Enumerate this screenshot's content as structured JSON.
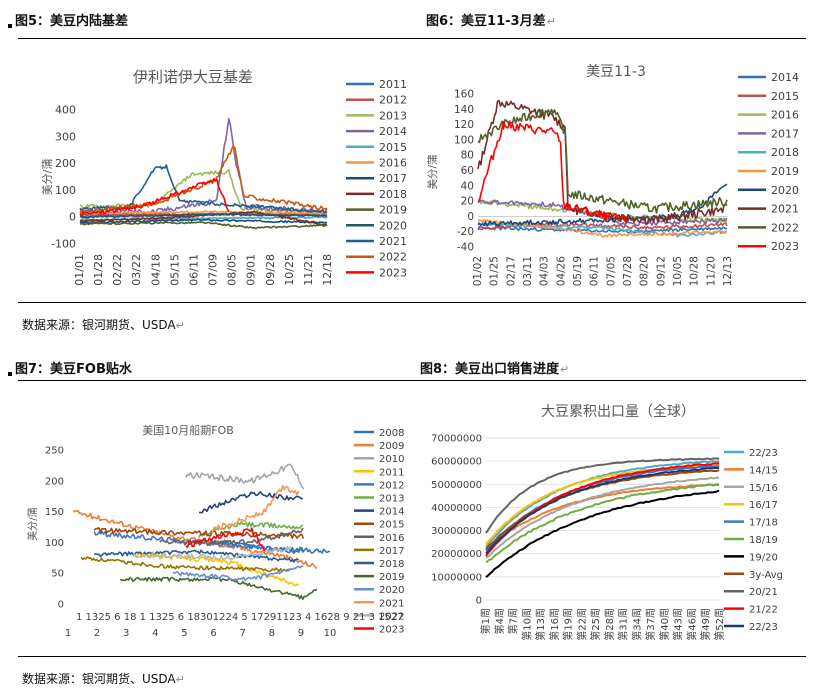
{
  "captions": [
    {
      "label": "图5：美豆内陆基差",
      "mark": ""
    },
    {
      "label": "图6：美豆11-3月差",
      "mark": "↵"
    },
    {
      "label": "图7：美豆FOB贴水",
      "mark": ""
    },
    {
      "label": "图8：美豆出口销售进度",
      "mark": "↵"
    }
  ],
  "sources": [
    {
      "text": "数据来源：银河期货、USDA",
      "mark": "↵"
    },
    {
      "text": "数据来源：银河期货、USDA",
      "mark": "↵"
    }
  ],
  "charts": [
    {
      "type": "line",
      "title": "伊利诺伊大豆基差",
      "ylabel": "美分/蒲",
      "ylim": [
        -100,
        400
      ],
      "yticks": [
        -100,
        0,
        100,
        200,
        300,
        400
      ],
      "xticks": [
        "01/01",
        "01/28",
        "02/22",
        "03/22",
        "04/18",
        "05/15",
        "06/11",
        "07/09",
        "08/05",
        "09/01",
        "09/28",
        "10/25",
        "11/21",
        "12/18"
      ],
      "legend": [
        "2011",
        "2012",
        "2013",
        "2014",
        "2015",
        "2016",
        "2017",
        "2018",
        "2019",
        "2020",
        "2021",
        "2022",
        "2023"
      ],
      "colors": [
        "#2e75b6",
        "#c0504d",
        "#9bbb59",
        "#8064a2",
        "#4bacc6",
        "#f79646",
        "#1f497d",
        "#772c2a",
        "#4f6228",
        "#215968",
        "#1f5f8b",
        "#c55a11",
        "#ff0000"
      ]
    },
    {
      "type": "line",
      "title": "美豆11-3",
      "ylabel": "美分/蒲",
      "ylim": [
        -40,
        160
      ],
      "yticks": [
        -40,
        -20,
        0,
        20,
        40,
        60,
        80,
        100,
        120,
        140,
        160
      ],
      "xticks": [
        "01/02",
        "01/25",
        "02/17",
        "03/11",
        "04/03",
        "04/26",
        "05/19",
        "06/11",
        "07/05",
        "07/28",
        "08/20",
        "09/12",
        "10/05",
        "10/28",
        "11/20",
        "12/13"
      ],
      "legend": [
        "2014",
        "2015",
        "2016",
        "2017",
        "2018",
        "2019",
        "2020",
        "2021",
        "2022",
        "2023"
      ],
      "colors": [
        "#2e75b6",
        "#c0504d",
        "#9bbb59",
        "#8064a2",
        "#4bacc6",
        "#f79646",
        "#1f497d",
        "#772c2a",
        "#4f6228",
        "#ff0000"
      ]
    },
    {
      "type": "line",
      "title": "美国10月船期FOB",
      "ylabel": "美分/蒲",
      "ylim": [
        0,
        250
      ],
      "yticks": [
        0,
        50,
        100,
        150,
        200,
        250
      ],
      "xticks_top": "1 1325 6 18 1 1325 6 18301224 5 17291123 4 1628 9 21 3 1527",
      "xticks": [
        "1",
        "2",
        "3",
        "4",
        "5",
        "6",
        "7",
        "8",
        "9",
        "10"
      ],
      "legend": [
        "2008",
        "2009",
        "2010",
        "2011",
        "2012",
        "2013",
        "2014",
        "2015",
        "2016",
        "2017",
        "2018",
        "2019",
        "2020",
        "2021",
        "2022",
        "2023"
      ],
      "colors": [
        "#2e75b6",
        "#ed7d31",
        "#a5a5a5",
        "#ffc000",
        "#4472c4",
        "#70ad47",
        "#264478",
        "#9e480e",
        "#636363",
        "#997300",
        "#255e91",
        "#43682b",
        "#698ed0",
        "#f1975a",
        "#b7b7b7",
        "#ff0000"
      ]
    },
    {
      "type": "line",
      "title": "大豆累积出口量（全球）",
      "ylabel": "",
      "ylim": [
        0,
        70000000
      ],
      "yticks": [
        "0",
        "10000000",
        "20000000",
        "30000000",
        "40000000",
        "50000000",
        "60000000",
        "70000000"
      ],
      "xticks": [
        "第1周",
        "第4周",
        "第7周",
        "第10周",
        "第13周",
        "第16周",
        "第19周",
        "第22周",
        "第25周",
        "第28周",
        "第31周",
        "第34周",
        "第37周",
        "第40周",
        "第43周",
        "第46周",
        "第49周",
        "第52周"
      ],
      "legend": [
        "22/23",
        "14/15",
        "15/16",
        "16/17",
        "17/18",
        "18/19",
        "19/20",
        "3y-Avg",
        "20/21",
        "21/22",
        "22/23"
      ],
      "colors": [
        "#4bacc6",
        "#ed7d31",
        "#a5a5a5",
        "#ffc000",
        "#4472c4",
        "#70ad47",
        "#000000",
        "#9e480e",
        "#636363",
        "#ff0000",
        "#1f3864"
      ]
    }
  ]
}
